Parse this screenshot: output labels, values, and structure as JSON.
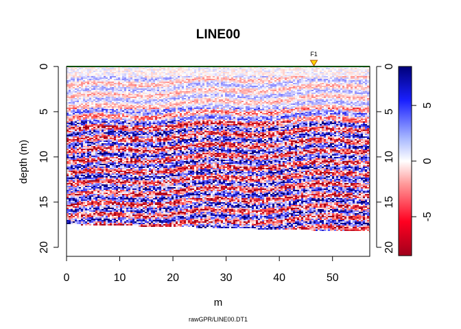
{
  "chart_data": {
    "type": "heatmap",
    "title": "LINE00",
    "xlabel": "m",
    "ylabel": "depth (m)",
    "caption": "rawGPR/LINE00.DT1",
    "xlim": [
      0,
      57
    ],
    "ylim": [
      21,
      0
    ],
    "xticks": [
      0,
      10,
      20,
      30,
      40,
      50
    ],
    "yticks": [
      0,
      5,
      10,
      15,
      20
    ],
    "data_depth_range": [
      0,
      17.4
    ],
    "data_depth_bottom_at_end": 18.2,
    "colorbar": {
      "range": [
        -8.5,
        8.5
      ],
      "ticks": [
        5,
        0,
        -5
      ],
      "colors": {
        "low": "#a8001e",
        "mid": "#ffffff",
        "high": "#000080"
      }
    },
    "markers": [
      {
        "label": "F1",
        "x": 46.5,
        "color": "#ffd700"
      }
    ],
    "surface_line_color": "#00a000",
    "grid": false,
    "legend": "colorbar right"
  }
}
